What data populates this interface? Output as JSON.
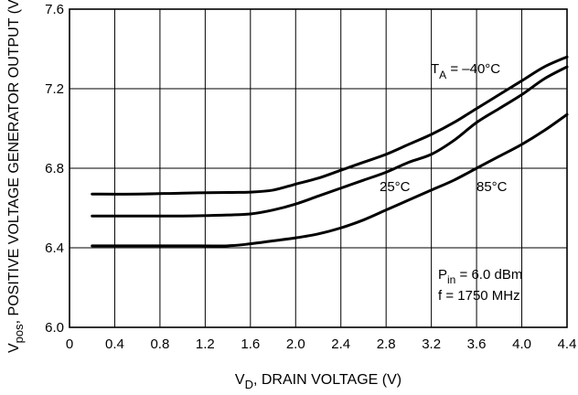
{
  "chart_data": {
    "type": "line",
    "xlabel": {
      "main": "V",
      "sub": "D",
      "rest": ", DRAIN VOLTAGE (V)"
    },
    "ylabel": {
      "main": "V",
      "sub": "pos",
      "rest": ", POSITIVE VOLTAGE GENERATOR OUTPUT (V)"
    },
    "xlim": [
      0,
      4.4
    ],
    "ylim": [
      6.0,
      7.6
    ],
    "xticks": [
      "0",
      "0.4",
      "0.8",
      "1.2",
      "1.6",
      "2.0",
      "2.4",
      "2.8",
      "3.2",
      "3.6",
      "4.0",
      "4.4"
    ],
    "yticks": [
      "6.0",
      "6.4",
      "6.8",
      "7.2",
      "7.6"
    ],
    "grid": true,
    "series": [
      {
        "name": "T_A = -40°C",
        "x": [
          0.2,
          0.6,
          1.0,
          1.4,
          1.6,
          1.8,
          2.0,
          2.2,
          2.4,
          2.6,
          2.8,
          3.0,
          3.2,
          3.4,
          3.6,
          3.8,
          4.0,
          4.2,
          4.4
        ],
        "y": [
          6.67,
          6.67,
          6.675,
          6.678,
          6.68,
          6.69,
          6.72,
          6.75,
          6.79,
          6.83,
          6.87,
          6.92,
          6.97,
          7.03,
          7.1,
          7.17,
          7.24,
          7.31,
          7.36
        ]
      },
      {
        "name": "25°C",
        "x": [
          0.2,
          0.6,
          1.0,
          1.4,
          1.6,
          1.8,
          2.0,
          2.2,
          2.4,
          2.6,
          2.8,
          3.0,
          3.2,
          3.4,
          3.6,
          3.8,
          4.0,
          4.2,
          4.4
        ],
        "y": [
          6.56,
          6.56,
          6.56,
          6.565,
          6.57,
          6.59,
          6.62,
          6.66,
          6.7,
          6.74,
          6.78,
          6.83,
          6.87,
          6.94,
          7.03,
          7.1,
          7.17,
          7.25,
          7.31
        ]
      },
      {
        "name": "85°C",
        "x": [
          0.2,
          0.6,
          1.0,
          1.4,
          1.6,
          1.8,
          2.0,
          2.2,
          2.4,
          2.6,
          2.8,
          3.0,
          3.2,
          3.4,
          3.6,
          3.8,
          4.0,
          4.2,
          4.4
        ],
        "y": [
          6.41,
          6.41,
          6.41,
          6.41,
          6.42,
          6.435,
          6.45,
          6.47,
          6.5,
          6.54,
          6.59,
          6.64,
          6.69,
          6.74,
          6.8,
          6.86,
          6.92,
          6.99,
          7.07
        ]
      }
    ],
    "annotations": {
      "ta_main": "T",
      "ta_sub": "A",
      "ta_rest": " = –40°C",
      "t25": "25°C",
      "t85": "85°C",
      "pin_main": "P",
      "pin_sub": "in",
      "pin_rest": " = 6.0 dBm",
      "freq": "f = 1750 MHz"
    }
  }
}
